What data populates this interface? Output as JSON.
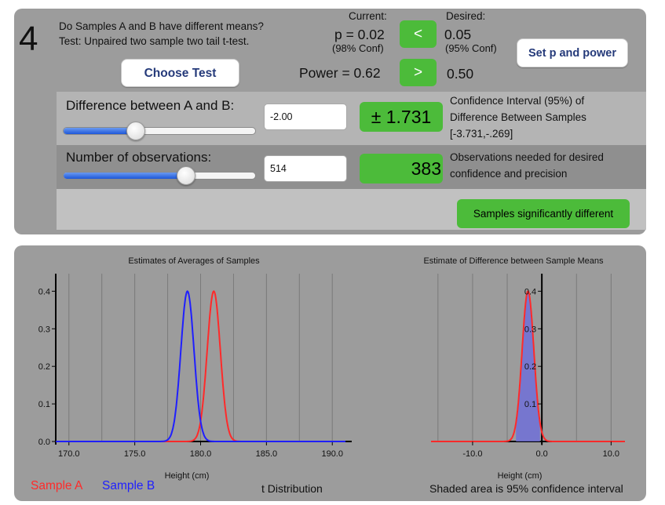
{
  "header": {
    "step_number": "4",
    "question": "Do Samples A and B have different means?",
    "test_description": "Test: Unpaired two sample two tail t-test.",
    "current_label": "Current:",
    "desired_label": "Desired:",
    "current_p": "p = 0.02",
    "current_conf": "(98% Conf)",
    "desired_p": "0.05",
    "desired_conf": "(95% Conf)",
    "p_compare_label": "<",
    "power_current": "Power = 0.62",
    "power_compare_label": ">",
    "power_desired": "0.50",
    "choose_test_label": "Choose Test",
    "set_p_power_label": "Set p and power"
  },
  "difference": {
    "label": "Difference between A and B:",
    "value": "-2.00",
    "slider_fraction": 0.38,
    "result": "± 1.731",
    "ci_line1": "Confidence Interval (95%) of",
    "ci_line2": "Difference Between Samples",
    "ci_range": "[-3.731,-.269]"
  },
  "observations": {
    "label": "Number of observations:",
    "value": "514",
    "slider_fraction": 0.64,
    "needed": "383",
    "needed_line1": "Observations needed for desired",
    "needed_line2": "confidence and precision"
  },
  "result_badge": "Samples significantly different",
  "colors": {
    "sample_a": "#ff2a2a",
    "sample_b": "#1f1fff",
    "shade": "#7070d8",
    "button_green": "#4cbb3a"
  },
  "chart_data": [
    {
      "type": "line",
      "title": "Estimates of Averages of Samples",
      "xlabel": "Height (cm)",
      "xlim": [
        169,
        191
      ],
      "ylim": [
        0,
        0.43
      ],
      "x_ticks": [
        "170.0",
        "175.0",
        "180.0",
        "185.0",
        "190.0"
      ],
      "y_ticks": [
        "0.0",
        "0.1",
        "0.2",
        "0.3",
        "0.4"
      ],
      "series": [
        {
          "name": "Sample A",
          "mean": 181.0,
          "peak": 0.4,
          "sd": 0.5
        },
        {
          "name": "Sample B",
          "mean": 179.0,
          "peak": 0.4,
          "sd": 0.5
        }
      ],
      "legend_a": "Sample A",
      "legend_b": "Sample B",
      "distribution_note": "t Distribution"
    },
    {
      "type": "area",
      "title": "Estimate of Difference between Sample Means",
      "xlabel": "Height (cm)",
      "xlim": [
        -16,
        12
      ],
      "ylim": [
        0,
        0.43
      ],
      "x_ticks": [
        "-10.0",
        "0.0",
        "10.0"
      ],
      "y_ticks": [
        "0.1",
        "0.2",
        "0.3",
        "0.4"
      ],
      "mean": -2.0,
      "peak": 0.4,
      "sd": 0.85,
      "shaded_range": [
        -3.731,
        -0.269
      ],
      "note": "Shaded area is 95% confidence interval"
    }
  ]
}
